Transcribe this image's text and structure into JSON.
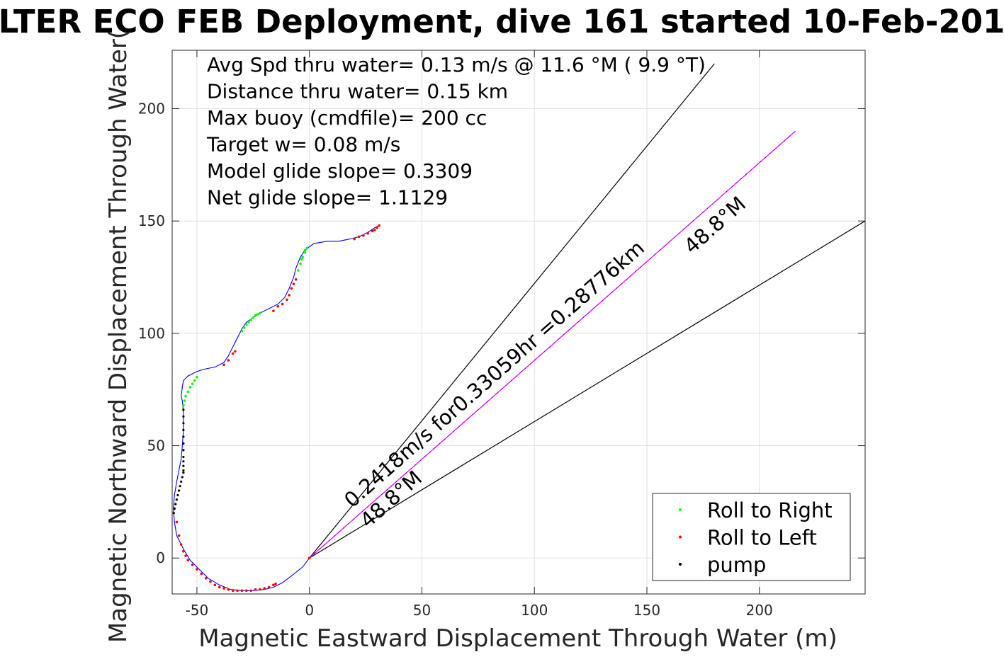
{
  "chart_data": {
    "type": "scatter",
    "title": "LTER ECO FEB Deployment, dive 161 started 10-Feb-201",
    "xlabel": "Magnetic Eastward Displacement Through Water (m)",
    "ylabel": "Magnetic Northward Displacement Through Water(",
    "xlim": [
      -61,
      247
    ],
    "ylim": [
      -16,
      226
    ],
    "xticks": [
      -50,
      0,
      50,
      100,
      150,
      200
    ],
    "yticks": [
      0,
      50,
      100,
      150,
      200
    ],
    "xtick_labels": [
      "-50",
      "0",
      "50",
      "100",
      "150",
      "200"
    ],
    "ytick_labels": [
      "0",
      "50",
      "100",
      "150",
      "200"
    ],
    "grid": true,
    "legend_position": "bottom-right",
    "stats": [
      "Avg Spd thru water=  0.13 m/s @  11.6 °M (  9.9 °T)",
      "Distance thru water=  0.15 km",
      "Max buoy (cmdfile)= 200 cc",
      "Target w= 0.08 m/s",
      "Model glide slope= 0.3309",
      "Net glide slope= 1.1129"
    ],
    "track": {
      "color": "#0000ff",
      "x": [
        0,
        -3,
        -8,
        -12,
        -16,
        -20,
        -25,
        -30,
        -35,
        -40,
        -45,
        -49,
        -53,
        -56,
        -59,
        -60,
        -60.5,
        -60,
        -59,
        -58,
        -57,
        -56.5,
        -56,
        -56,
        -56.5,
        -57,
        -56.5,
        -56,
        -54,
        -52,
        -50,
        -47,
        -42,
        -38,
        -36,
        -34,
        -32,
        -30,
        -28,
        -25,
        -22,
        -18,
        -14,
        -11,
        -9,
        -7,
        -6,
        -4,
        -2,
        2,
        8,
        13,
        18,
        22,
        26,
        29,
        31
      ],
      "y": [
        0,
        -4,
        -8,
        -11,
        -13,
        -14,
        -14.5,
        -14.5,
        -14,
        -12,
        -9,
        -5,
        -1,
        4,
        10,
        16,
        22,
        28,
        34,
        39,
        44,
        50,
        57,
        65,
        70,
        72,
        76,
        79,
        81,
        82,
        83,
        84,
        85,
        87,
        90,
        94,
        98,
        102,
        105,
        107,
        109,
        111,
        113,
        116,
        120,
        125,
        129,
        134,
        137,
        140,
        141,
        141,
        142,
        143,
        145,
        147,
        148
      ]
    },
    "roll_right": {
      "color": "#00ff00",
      "x": [
        -2,
        -3.5,
        -56,
        -55.5,
        -55,
        -54,
        -53,
        -52,
        -51,
        -50,
        -30,
        -29,
        -28,
        -27,
        -26,
        -25,
        -24,
        -23,
        -22,
        -5,
        -4,
        -3,
        -2,
        -1
      ],
      "y": [
        137,
        133,
        68,
        70,
        72,
        74,
        76,
        77.5,
        79,
        80.5,
        101,
        102.5,
        104,
        105,
        106,
        107,
        108,
        108.5,
        109,
        128,
        131,
        134,
        136,
        138
      ]
    },
    "roll_left": {
      "color": "#ff0000",
      "x": [
        -60,
        -59,
        -58,
        -57,
        -56,
        -55,
        -54,
        -52,
        -50,
        -48,
        -46,
        -44,
        -42,
        -40,
        -38,
        -36,
        -34,
        -32,
        -30,
        -28,
        -26,
        -24,
        -22,
        -20,
        -18,
        -16,
        -15,
        -34,
        -33,
        -36,
        -38,
        -16,
        -14,
        -12,
        -10,
        -9,
        -8,
        -7,
        -6,
        20,
        22,
        24,
        26,
        28,
        29,
        30,
        31,
        0
      ],
      "y": [
        22,
        16,
        10,
        6,
        3,
        1,
        -1,
        -3,
        -5,
        -7,
        -9,
        -10.5,
        -12,
        -13,
        -13.5,
        -14,
        -14.5,
        -14.5,
        -14.5,
        -14.5,
        -14.5,
        -14,
        -14,
        -13.5,
        -13,
        -12,
        -11.5,
        91,
        92,
        88,
        86,
        110,
        112,
        113,
        115,
        117,
        120,
        122,
        124,
        142,
        143,
        143.5,
        144.5,
        145.5,
        146,
        147,
        148,
        0
      ]
    },
    "pump": {
      "color": "#000000",
      "x": [
        -56,
        -56,
        -56,
        -56,
        -56,
        -56,
        -56,
        -56,
        -56,
        -56,
        -56,
        -56,
        -56.5,
        -57,
        -57.5,
        -58,
        -58.5,
        -59,
        -59.5,
        -60,
        -60.3
      ],
      "y": [
        66,
        63,
        60,
        57,
        54,
        51,
        48,
        45,
        43,
        41,
        39,
        38,
        36,
        34,
        32,
        30,
        28,
        26,
        24,
        22,
        20
      ]
    },
    "net_vector": {
      "color": "#ff00ff",
      "x": [
        0,
        216
      ],
      "y": [
        0,
        190
      ]
    },
    "wedge_lines": [
      {
        "x": [
          0,
          180
        ],
        "y": [
          0,
          220
        ]
      },
      {
        "x": [
          0,
          247
        ],
        "y": [
          0,
          150
        ]
      }
    ],
    "annotations": [
      {
        "text": "0.2418m/s for0.33059hr =0.28776km",
        "x": 19,
        "y": 22,
        "angle_deg": 41.4
      },
      {
        "text": "48.8°M",
        "x": 26,
        "y": 13,
        "angle_deg": 41.4
      },
      {
        "text": "48.8°M",
        "x": 170,
        "y": 135,
        "angle_deg": 41.4
      }
    ],
    "legend": [
      {
        "label": "Roll to Right",
        "color": "#00ff00"
      },
      {
        "label": "Roll to Left",
        "color": "#ff0000"
      },
      {
        "label": "pump",
        "color": "#000000"
      }
    ]
  }
}
